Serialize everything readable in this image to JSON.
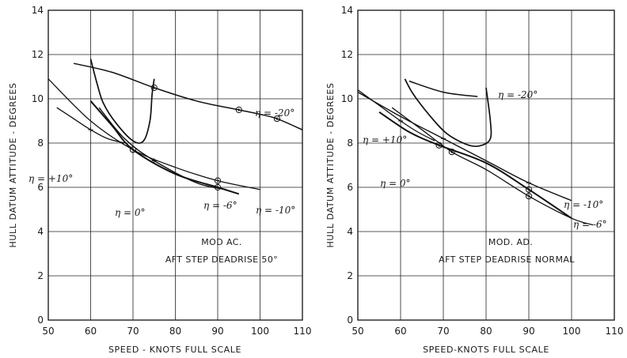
{
  "chart_data": [
    {
      "type": "line",
      "xlabel": "SPEED - KNOTS FULL SCALE",
      "ylabel": "HULL DATUM ATTITUDE - DEGREES",
      "xlim": [
        50,
        110
      ],
      "ylim": [
        0,
        14
      ],
      "xticks": [
        "50",
        "60",
        "70",
        "80",
        "90",
        "100",
        "110"
      ],
      "yticks": [
        "0",
        "2",
        "4",
        "6",
        "8",
        "10",
        "12",
        "14"
      ],
      "grid": true,
      "notes": [
        "MOD AC.",
        "AFT STEP DEADRISE 50°"
      ],
      "series": [
        {
          "name": "η = -20°",
          "x": [
            56,
            65,
            75,
            85,
            95,
            100,
            104,
            110
          ],
          "y": [
            11.6,
            11.2,
            10.5,
            9.9,
            9.5,
            9.3,
            9.1,
            8.6
          ]
        },
        {
          "name": "η = +10°",
          "x": [
            52,
            56,
            60,
            64,
            68
          ],
          "y": [
            9.6,
            9.1,
            8.6,
            8.2,
            8.0
          ]
        },
        {
          "name": "η = 0°",
          "x": [
            60,
            65,
            70,
            80,
            90,
            95
          ],
          "y": [
            9.9,
            8.8,
            7.7,
            6.6,
            6.0,
            5.7
          ]
        },
        {
          "name": "η = -6°",
          "x": [
            62,
            68,
            75,
            85,
            92
          ],
          "y": [
            9.6,
            8.2,
            7.2,
            6.2,
            5.9
          ]
        },
        {
          "name": "η = -10°",
          "x": [
            50,
            60,
            70,
            80,
            90,
            100
          ],
          "y": [
            10.9,
            9.0,
            7.7,
            6.9,
            6.3,
            5.9
          ]
        },
        {
          "name": "",
          "x": [
            60,
            61.5,
            63,
            66,
            70,
            72.5,
            74,
            74.5,
            75
          ],
          "y": [
            11.8,
            10.7,
            9.8,
            8.9,
            8.1,
            8.1,
            9.0,
            10.2,
            10.9
          ]
        }
      ]
    },
    {
      "type": "line",
      "xlabel": "SPEED-KNOTS FULL SCALE",
      "ylabel": "HULL DATUM ATTITUDE - DEGREES",
      "xlim": [
        50,
        110
      ],
      "ylim": [
        0,
        14
      ],
      "xticks": [
        "50",
        "60",
        "70",
        "80",
        "90",
        "100",
        "110"
      ],
      "yticks": [
        "0",
        "2",
        "4",
        "6",
        "8",
        "10",
        "12",
        "14"
      ],
      "grid": true,
      "notes": [
        "MOD. AD.",
        "AFT STEP DEADRISE NORMAL"
      ],
      "series": [
        {
          "name": "η = -20°",
          "x": [
            62,
            70,
            78
          ],
          "y": [
            10.8,
            10.3,
            10.1
          ]
        },
        {
          "name": "η = +10°",
          "x": [
            50,
            55,
            60,
            64,
            68
          ],
          "y": [
            10.4,
            9.7,
            9.0,
            8.5,
            8.1
          ]
        },
        {
          "name": "η = 0°",
          "x": [
            55,
            62,
            69,
            80,
            90,
            100
          ],
          "y": [
            9.4,
            8.5,
            7.9,
            7.1,
            5.9,
            4.6
          ]
        },
        {
          "name": "η = -10°",
          "x": [
            50,
            60,
            70,
            80,
            90,
            100
          ],
          "y": [
            10.3,
            9.2,
            8.2,
            7.2,
            6.2,
            5.4
          ]
        },
        {
          "name": "η = -6°",
          "x": [
            58,
            65,
            72,
            80,
            90,
            100,
            105
          ],
          "y": [
            9.6,
            8.6,
            7.6,
            6.8,
            5.6,
            4.6,
            4.3
          ]
        },
        {
          "name": "",
          "x": [
            61,
            63,
            67,
            71,
            76,
            79,
            81,
            81,
            80
          ],
          "y": [
            10.9,
            10.2,
            9.2,
            8.4,
            7.9,
            7.9,
            8.2,
            9.0,
            10.5
          ]
        }
      ]
    }
  ]
}
